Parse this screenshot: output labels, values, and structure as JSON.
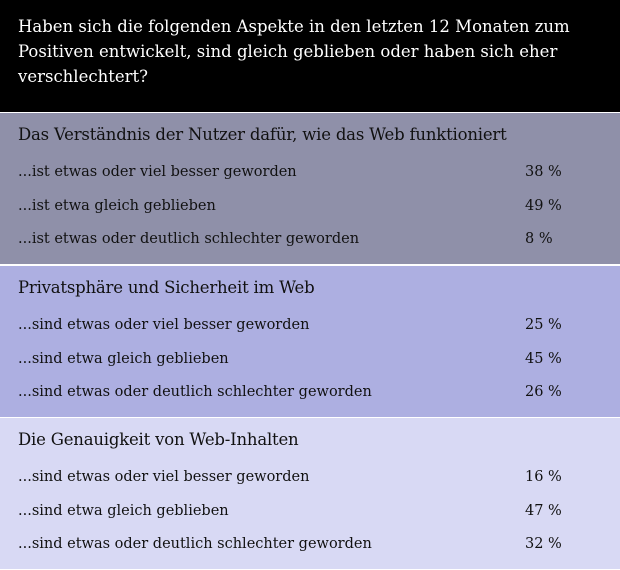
{
  "header": {
    "title": "Haben sich die folgenden Aspekte in den letzten 12 Monaten zum Positiven entwickelt, sind gleich geblieben oder haben sich eher verschlechtert?"
  },
  "sections": [
    {
      "title": "Das Verständnis der Nutzer dafür, wie das Web funktioniert",
      "rows": [
        {
          "label": "...ist etwas oder viel besser geworden",
          "value": "38 %"
        },
        {
          "label": "...ist etwa gleich geblieben",
          "value": "49 %"
        },
        {
          "label": "...ist etwas oder deutlich schlechter geworden",
          "value": "8 %"
        }
      ]
    },
    {
      "title": "Privatsphäre und Sicherheit im Web",
      "rows": [
        {
          "label": "...sind etwas oder viel besser geworden",
          "value": "25 %"
        },
        {
          "label": "...sind etwa gleich geblieben",
          "value": "45 %"
        },
        {
          "label": "...sind etwas oder deutlich schlechter geworden",
          "value": "26 %"
        }
      ]
    },
    {
      "title": "Die Genauigkeit von Web-Inhalten",
      "rows": [
        {
          "label": "...sind etwas oder viel besser geworden",
          "value": "16 %"
        },
        {
          "label": "...sind etwa gleich geblieben",
          "value": "47 %"
        },
        {
          "label": "...sind etwas oder deutlich schlechter geworden",
          "value": "32 %"
        }
      ]
    }
  ]
}
